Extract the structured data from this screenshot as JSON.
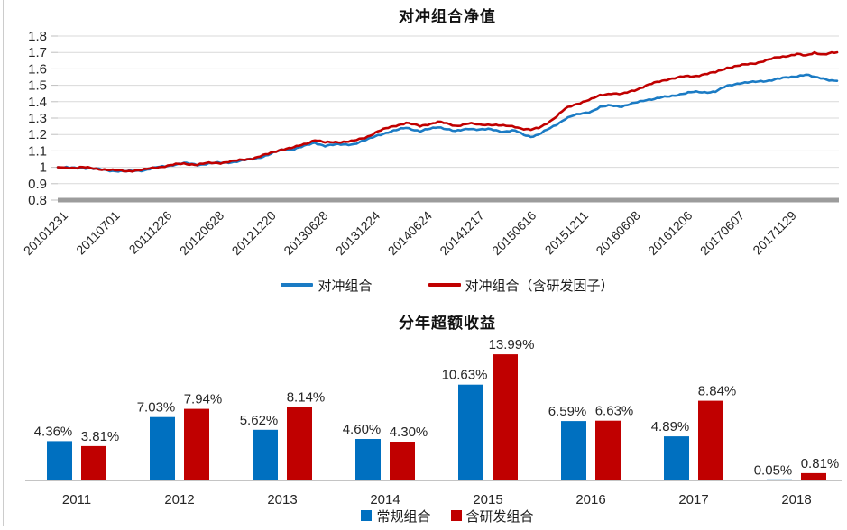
{
  "page": {
    "background": "#ffffff"
  },
  "chart_data": [
    {
      "type": "line",
      "title": "对冲组合净值",
      "ylim": [
        0.8,
        1.8
      ],
      "y_ticks": [
        "0.8",
        "0.9",
        "1",
        "1.1",
        "1.2",
        "1.3",
        "1.4",
        "1.5",
        "1.6",
        "1.7",
        "1.8"
      ],
      "x_tick_labels": [
        "20101231",
        "20110701",
        "20111226",
        "20120628",
        "20121220",
        "20130628",
        "20131224",
        "20140624",
        "20141217",
        "20150616",
        "20151211",
        "20160608",
        "20161206",
        "20170607",
        "20171129"
      ],
      "grid": true,
      "legend_position": "bottom",
      "axis_colors": {
        "gridline": "#d9d9d9",
        "tick": "#bfbfbf",
        "baseline": "#9c9c9c",
        "label": "#262626"
      },
      "series": [
        {
          "name": "对冲组合",
          "color": "#1b7bc4",
          "points": [
            [
              0.0,
              1.0
            ],
            [
              0.015,
              0.996
            ],
            [
              0.032,
              0.998
            ],
            [
              0.046,
              0.99
            ],
            [
              0.06,
              0.985
            ],
            [
              0.074,
              0.978
            ],
            [
              0.088,
              0.974
            ],
            [
              0.1,
              0.98
            ],
            [
              0.111,
              0.983
            ],
            [
              0.122,
              0.994
            ],
            [
              0.134,
              1.004
            ],
            [
              0.148,
              1.016
            ],
            [
              0.162,
              1.024
            ],
            [
              0.179,
              1.016
            ],
            [
              0.194,
              1.024
            ],
            [
              0.209,
              1.026
            ],
            [
              0.23,
              1.036
            ],
            [
              0.25,
              1.05
            ],
            [
              0.27,
              1.076
            ],
            [
              0.287,
              1.105
            ],
            [
              0.303,
              1.112
            ],
            [
              0.316,
              1.128
            ],
            [
              0.33,
              1.15
            ],
            [
              0.343,
              1.132
            ],
            [
              0.36,
              1.138
            ],
            [
              0.38,
              1.142
            ],
            [
              0.394,
              1.162
            ],
            [
              0.411,
              1.198
            ],
            [
              0.431,
              1.22
            ],
            [
              0.447,
              1.244
            ],
            [
              0.465,
              1.218
            ],
            [
              0.488,
              1.248
            ],
            [
              0.51,
              1.218
            ],
            [
              0.527,
              1.238
            ],
            [
              0.541,
              1.228
            ],
            [
              0.556,
              1.232
            ],
            [
              0.572,
              1.218
            ],
            [
              0.587,
              1.222
            ],
            [
              0.598,
              1.2
            ],
            [
              0.607,
              1.188
            ],
            [
              0.617,
              1.198
            ],
            [
              0.628,
              1.228
            ],
            [
              0.64,
              1.262
            ],
            [
              0.651,
              1.295
            ],
            [
              0.662,
              1.315
            ],
            [
              0.674,
              1.33
            ],
            [
              0.685,
              1.342
            ],
            [
              0.696,
              1.365
            ],
            [
              0.71,
              1.378
            ],
            [
              0.724,
              1.372
            ],
            [
              0.74,
              1.39
            ],
            [
              0.755,
              1.412
            ],
            [
              0.769,
              1.42
            ],
            [
              0.785,
              1.432
            ],
            [
              0.802,
              1.45
            ],
            [
              0.816,
              1.458
            ],
            [
              0.83,
              1.458
            ],
            [
              0.844,
              1.462
            ],
            [
              0.859,
              1.495
            ],
            [
              0.875,
              1.515
            ],
            [
              0.892,
              1.518
            ],
            [
              0.909,
              1.528
            ],
            [
              0.923,
              1.538
            ],
            [
              0.938,
              1.548
            ],
            [
              0.949,
              1.558
            ],
            [
              0.96,
              1.565
            ],
            [
              0.971,
              1.548
            ],
            [
              0.983,
              1.542
            ],
            [
              0.993,
              1.53
            ],
            [
              1.0,
              1.528
            ]
          ]
        },
        {
          "name": "对冲组合（含研发因子）",
          "color": "#c00000",
          "points": [
            [
              0.0,
              1.0
            ],
            [
              0.015,
              0.998
            ],
            [
              0.032,
              1.0
            ],
            [
              0.046,
              0.992
            ],
            [
              0.06,
              0.988
            ],
            [
              0.074,
              0.98
            ],
            [
              0.088,
              0.977
            ],
            [
              0.1,
              0.982
            ],
            [
              0.111,
              0.985
            ],
            [
              0.122,
              0.995
            ],
            [
              0.134,
              1.005
            ],
            [
              0.148,
              1.015
            ],
            [
              0.162,
              1.022
            ],
            [
              0.179,
              1.017
            ],
            [
              0.194,
              1.025
            ],
            [
              0.209,
              1.028
            ],
            [
              0.23,
              1.04
            ],
            [
              0.25,
              1.055
            ],
            [
              0.27,
              1.08
            ],
            [
              0.287,
              1.11
            ],
            [
              0.303,
              1.12
            ],
            [
              0.316,
              1.14
            ],
            [
              0.33,
              1.168
            ],
            [
              0.343,
              1.15
            ],
            [
              0.36,
              1.155
            ],
            [
              0.38,
              1.16
            ],
            [
              0.394,
              1.18
            ],
            [
              0.411,
              1.22
            ],
            [
              0.431,
              1.25
            ],
            [
              0.447,
              1.272
            ],
            [
              0.465,
              1.25
            ],
            [
              0.488,
              1.278
            ],
            [
              0.51,
              1.252
            ],
            [
              0.527,
              1.268
            ],
            [
              0.541,
              1.258
            ],
            [
              0.556,
              1.262
            ],
            [
              0.572,
              1.252
            ],
            [
              0.587,
              1.248
            ],
            [
              0.598,
              1.235
            ],
            [
              0.607,
              1.228
            ],
            [
              0.617,
              1.238
            ],
            [
              0.628,
              1.27
            ],
            [
              0.64,
              1.31
            ],
            [
              0.651,
              1.355
            ],
            [
              0.662,
              1.38
            ],
            [
              0.674,
              1.4
            ],
            [
              0.685,
              1.415
            ],
            [
              0.696,
              1.438
            ],
            [
              0.71,
              1.452
            ],
            [
              0.724,
              1.445
            ],
            [
              0.74,
              1.47
            ],
            [
              0.755,
              1.498
            ],
            [
              0.769,
              1.518
            ],
            [
              0.785,
              1.54
            ],
            [
              0.802,
              1.552
            ],
            [
              0.816,
              1.555
            ],
            [
              0.83,
              1.568
            ],
            [
              0.844,
              1.578
            ],
            [
              0.859,
              1.608
            ],
            [
              0.875,
              1.62
            ],
            [
              0.892,
              1.632
            ],
            [
              0.909,
              1.652
            ],
            [
              0.923,
              1.668
            ],
            [
              0.938,
              1.682
            ],
            [
              0.949,
              1.69
            ],
            [
              0.96,
              1.678
            ],
            [
              0.971,
              1.7
            ],
            [
              0.983,
              1.688
            ],
            [
              0.993,
              1.695
            ],
            [
              1.0,
              1.698
            ]
          ]
        }
      ]
    },
    {
      "type": "bar",
      "title": "分年超额收益",
      "categories": [
        "2011",
        "2012",
        "2013",
        "2014",
        "2015",
        "2016",
        "2017",
        "2018"
      ],
      "grid": false,
      "legend_position": "bottom",
      "axis_colors": {
        "baseline": "#a0a0a0",
        "label": "#262626"
      },
      "series": [
        {
          "name": "常规组合",
          "color": "#0070c0",
          "values": [
            4.36,
            7.03,
            5.62,
            4.6,
            10.63,
            6.59,
            4.89,
            0.05
          ],
          "labels": [
            "4.36%",
            "7.03%",
            "5.62%",
            "4.60%",
            "10.63%",
            "6.59%",
            "4.89%",
            "0.05%"
          ]
        },
        {
          "name": "含研发组合",
          "color": "#c00000",
          "values": [
            3.81,
            7.94,
            8.14,
            4.3,
            13.99,
            6.63,
            8.84,
            0.81
          ],
          "labels": [
            "3.81%",
            "7.94%",
            "8.14%",
            "4.30%",
            "13.99%",
            "6.63%",
            "8.84%",
            "0.81%"
          ]
        }
      ]
    }
  ]
}
